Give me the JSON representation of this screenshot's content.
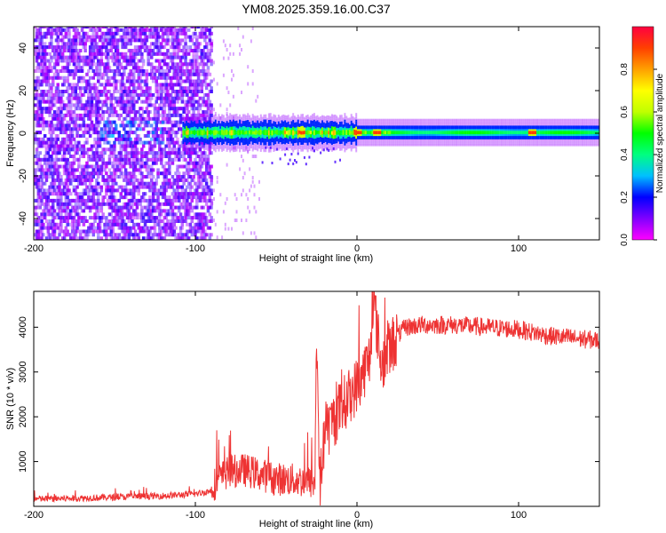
{
  "title": "YM08.2025.359.16.00.C37",
  "chart_data": [
    {
      "type": "heatmap",
      "xlabel": "Height of straight line (km)",
      "ylabel": "Frequency (Hz)",
      "xlim": [
        -200,
        150
      ],
      "ylim": [
        -50,
        50
      ],
      "xticks": [
        -200,
        -100,
        0,
        100
      ],
      "yticks": [
        -40,
        -20,
        0,
        20,
        40
      ],
      "colorbar": {
        "label": "Normalized spectral amplitude",
        "range": [
          0,
          1
        ],
        "ticks": [
          "0.0",
          "0.2",
          "0.4",
          "0.6",
          "0.8"
        ],
        "colormap": [
          "#ff00ff",
          "#8000ff",
          "#0000ff",
          "#00c0ff",
          "#00ff80",
          "#00ff00",
          "#c0ff00",
          "#ffff00",
          "#ffa000",
          "#ff4000",
          "#ff0040"
        ]
      },
      "features": {
        "noise_region_x": [
          -200,
          -90
        ],
        "noise_amplitude": 0.15,
        "line_frequency_hz": 0,
        "line_start_x": -108,
        "line_peak_amplitude": 0.9,
        "line_peaks_x": [
          -35,
          0,
          12,
          108
        ]
      }
    },
    {
      "type": "line",
      "xlabel": "Height of straight line (km)",
      "ylabel": "SNR (10 * v/v)",
      "xlim": [
        -200,
        150
      ],
      "ylim": [
        0,
        4800
      ],
      "xticks": [
        -200,
        -100,
        0,
        100
      ],
      "yticks": [
        1000,
        2000,
        3000,
        4000
      ],
      "series": [
        {
          "color": "#ee3333",
          "x": [
            -200,
            -180,
            -160,
            -140,
            -120,
            -100,
            -90,
            -80,
            -70,
            -60,
            -50,
            -40,
            -30,
            -26,
            -25,
            -23,
            -20,
            -10,
            0,
            8,
            10,
            15,
            20,
            25,
            30,
            40,
            60,
            80,
            100,
            120,
            150
          ],
          "y": [
            150,
            160,
            180,
            200,
            220,
            260,
            330,
            650,
            700,
            600,
            500,
            480,
            430,
            420,
            3900,
            400,
            1600,
            2200,
            2700,
            3300,
            4700,
            3150,
            3500,
            3800,
            4000,
            4050,
            4050,
            4000,
            3950,
            3800,
            3700
          ]
        }
      ]
    }
  ]
}
